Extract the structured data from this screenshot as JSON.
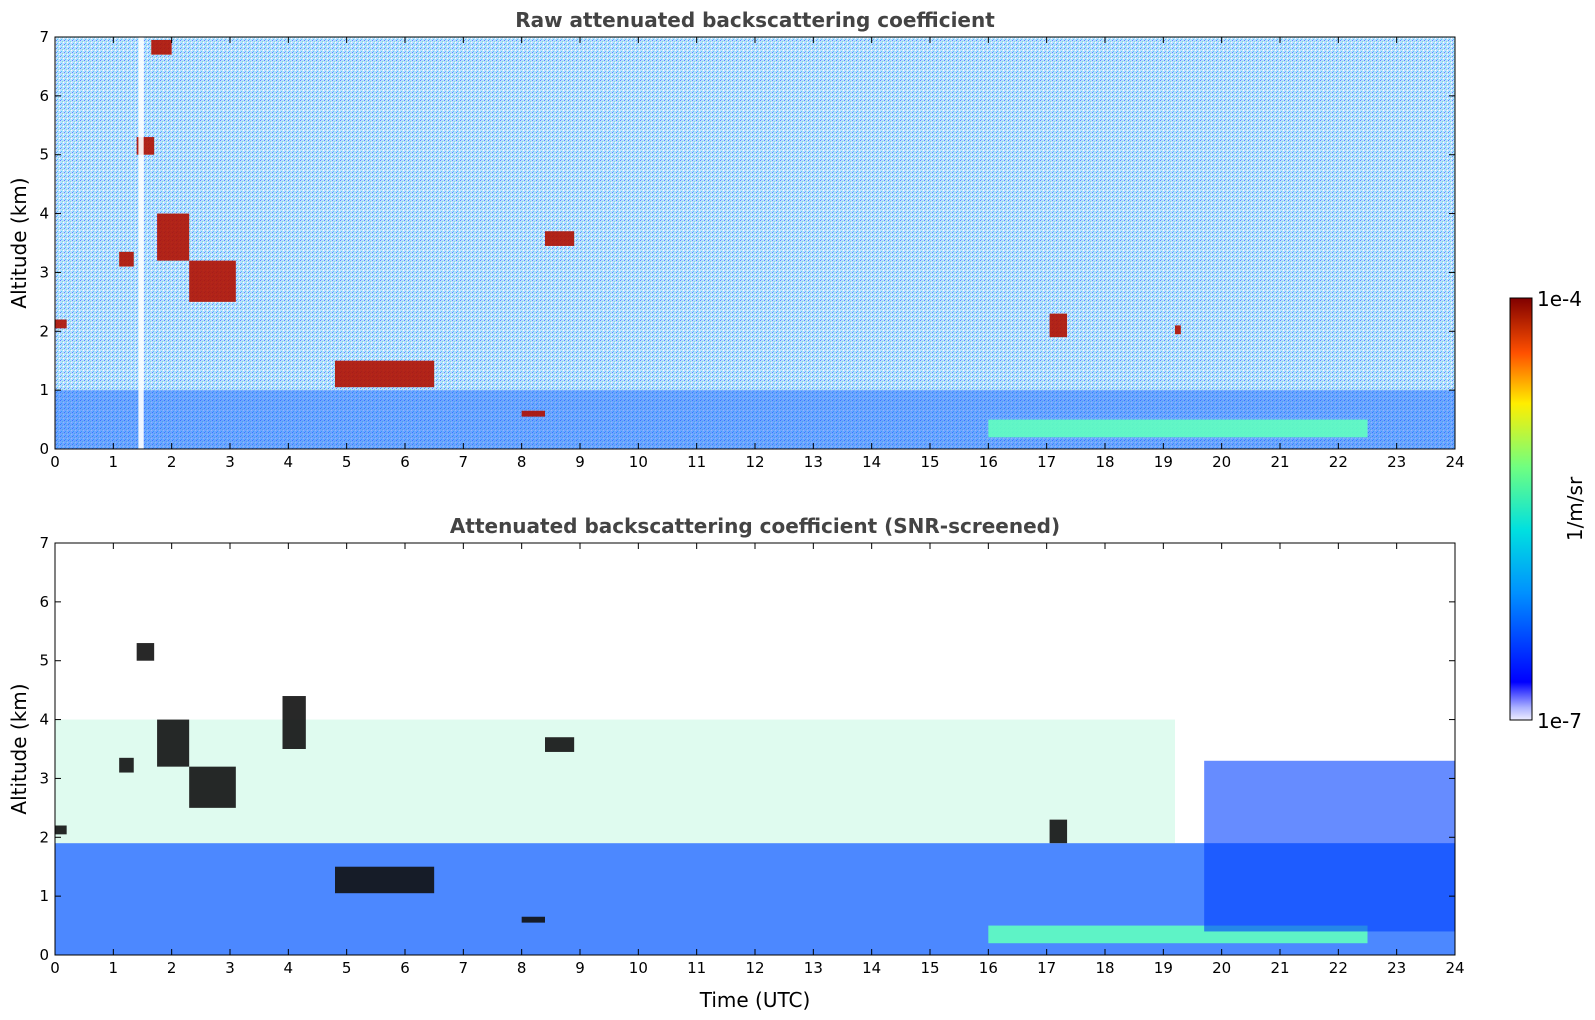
{
  "chart_data": [
    {
      "type": "heatmap",
      "title": "Raw attenuated backscattering coefficient",
      "xlabel": "",
      "ylabel": "Altitude (km)",
      "xlim": [
        0,
        24
      ],
      "ylim": [
        0,
        7
      ],
      "x_ticks": [
        "0",
        "1",
        "2",
        "3",
        "4",
        "5",
        "6",
        "7",
        "8",
        "9",
        "10",
        "11",
        "12",
        "13",
        "14",
        "15",
        "16",
        "17",
        "18",
        "19",
        "20",
        "21",
        "22",
        "23",
        "24"
      ],
      "y_ticks": [
        "0",
        "1",
        "2",
        "3",
        "4",
        "5",
        "6",
        "7"
      ],
      "colorscale": "jet",
      "grid": false,
      "features": [
        {
          "kind": "cloud",
          "x": [
            0.0,
            0.2
          ],
          "y": [
            2.05,
            2.2
          ]
        },
        {
          "kind": "cloud",
          "x": [
            1.1,
            1.35
          ],
          "y": [
            3.1,
            3.35
          ]
        },
        {
          "kind": "cloud",
          "x": [
            1.4,
            1.7
          ],
          "y": [
            5.0,
            5.3
          ]
        },
        {
          "kind": "cloud",
          "x": [
            1.65,
            2.0
          ],
          "y": [
            6.7,
            6.95
          ]
        },
        {
          "kind": "cloud",
          "x": [
            1.75,
            2.3
          ],
          "y": [
            3.2,
            4.0
          ]
        },
        {
          "kind": "cloud",
          "x": [
            2.3,
            3.1
          ],
          "y": [
            2.5,
            3.2
          ]
        },
        {
          "kind": "cloud",
          "x": [
            4.8,
            6.5
          ],
          "y": [
            1.05,
            1.5
          ]
        },
        {
          "kind": "cloud",
          "x": [
            8.4,
            8.9
          ],
          "y": [
            3.45,
            3.7
          ]
        },
        {
          "kind": "cloud",
          "x": [
            8.0,
            8.4
          ],
          "y": [
            0.55,
            0.65
          ]
        },
        {
          "kind": "cloud",
          "x": [
            17.05,
            17.35
          ],
          "y": [
            1.9,
            2.3
          ]
        },
        {
          "kind": "cloud",
          "x": [
            19.2,
            19.3
          ],
          "y": [
            1.95,
            2.1
          ]
        },
        {
          "kind": "aerosol_layer",
          "x": [
            16.0,
            22.5
          ],
          "y": [
            0.2,
            0.5
          ]
        },
        {
          "kind": "missing_data",
          "x": [
            1.43,
            1.52
          ],
          "y": [
            0,
            7
          ]
        }
      ]
    },
    {
      "type": "heatmap",
      "title": "Attenuated backscattering coefficient (SNR-screened)",
      "xlabel": "Time (UTC)",
      "ylabel": "Altitude (km)",
      "xlim": [
        0,
        24
      ],
      "ylim": [
        0,
        7
      ],
      "x_ticks": [
        "0",
        "1",
        "2",
        "3",
        "4",
        "5",
        "6",
        "7",
        "8",
        "9",
        "10",
        "11",
        "12",
        "13",
        "14",
        "15",
        "16",
        "17",
        "18",
        "19",
        "20",
        "21",
        "22",
        "23",
        "24"
      ],
      "y_ticks": [
        "0",
        "1",
        "2",
        "3",
        "4",
        "5",
        "6",
        "7"
      ],
      "colorscale": "jet",
      "grid": false,
      "features": [
        {
          "kind": "cloud",
          "x": [
            0.0,
            0.2
          ],
          "y": [
            2.05,
            2.2
          ]
        },
        {
          "kind": "cloud",
          "x": [
            1.1,
            1.35
          ],
          "y": [
            3.1,
            3.35
          ]
        },
        {
          "kind": "cloud",
          "x": [
            1.4,
            1.7
          ],
          "y": [
            5.0,
            5.3
          ]
        },
        {
          "kind": "cloud",
          "x": [
            1.75,
            2.3
          ],
          "y": [
            3.2,
            4.0
          ]
        },
        {
          "kind": "cloud",
          "x": [
            2.3,
            3.1
          ],
          "y": [
            2.5,
            3.2
          ]
        },
        {
          "kind": "cloud",
          "x": [
            3.9,
            4.3
          ],
          "y": [
            3.5,
            4.4
          ]
        },
        {
          "kind": "cloud",
          "x": [
            4.8,
            6.5
          ],
          "y": [
            1.05,
            1.5
          ]
        },
        {
          "kind": "cloud",
          "x": [
            8.4,
            8.9
          ],
          "y": [
            3.45,
            3.7
          ]
        },
        {
          "kind": "cloud",
          "x": [
            8.0,
            8.4
          ],
          "y": [
            0.55,
            0.65
          ]
        },
        {
          "kind": "cloud",
          "x": [
            17.05,
            17.35
          ],
          "y": [
            1.9,
            2.3
          ]
        },
        {
          "kind": "aerosol_layer",
          "x": [
            16.0,
            22.5
          ],
          "y": [
            0.2,
            0.5
          ]
        },
        {
          "kind": "screened_band",
          "x": [
            19.7,
            24.0
          ],
          "y": [
            0.4,
            3.3
          ]
        }
      ]
    }
  ],
  "colorbar": {
    "label": "1/m/sr",
    "max_label": "1e-4",
    "min_label": "1e-7",
    "scale": "log"
  }
}
